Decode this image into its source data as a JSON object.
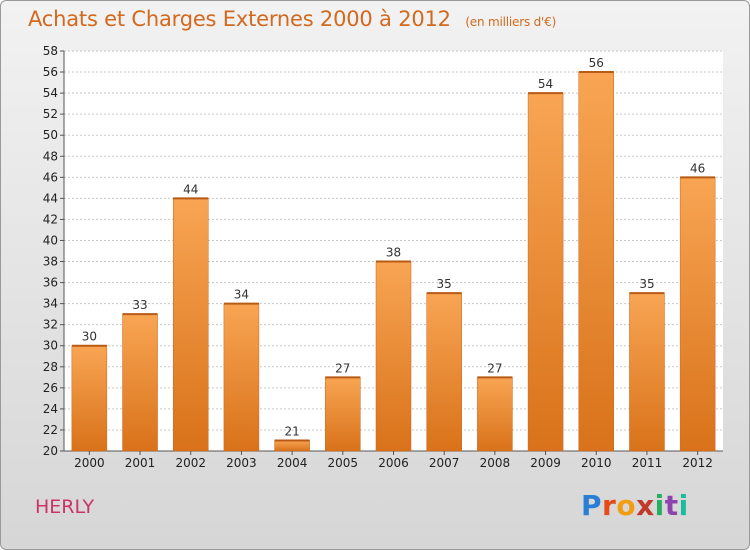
{
  "chart_data": {
    "type": "bar",
    "title": "Achats et Charges Externes 2000 à 2012",
    "unit_label": "(en milliers d'€)",
    "categories": [
      "2000",
      "2001",
      "2002",
      "2003",
      "2004",
      "2005",
      "2006",
      "2007",
      "2008",
      "2009",
      "2010",
      "2011",
      "2012"
    ],
    "values": [
      30,
      33,
      44,
      34,
      21,
      27,
      38,
      35,
      27,
      54,
      56,
      35,
      46
    ],
    "value_labels": [
      "30",
      "33",
      "44",
      "34",
      "21",
      "27",
      "38",
      "35",
      "27",
      "54",
      "56",
      "35",
      "46"
    ],
    "ylim": [
      20,
      58
    ],
    "yticks": [
      20,
      22,
      24,
      26,
      28,
      30,
      32,
      34,
      36,
      38,
      40,
      42,
      44,
      46,
      48,
      50,
      52,
      54,
      56,
      58
    ],
    "ytick_labels": [
      "20",
      "22",
      "24",
      "26",
      "28",
      "30",
      "32",
      "34",
      "36",
      "38",
      "40",
      "42",
      "44",
      "46",
      "48",
      "50",
      "52",
      "54",
      "56",
      "58"
    ],
    "grid": true,
    "bar_color": "#e8893a"
  },
  "commune": "HERLY",
  "logo": {
    "letters": [
      "P",
      "r",
      "o",
      "x",
      "i",
      "t",
      "i"
    ],
    "colors": [
      "#2a7fd4",
      "#e64a19",
      "#f39c12",
      "#c0392b",
      "#27ae60",
      "#8e44ad",
      "#1abc9c"
    ]
  }
}
